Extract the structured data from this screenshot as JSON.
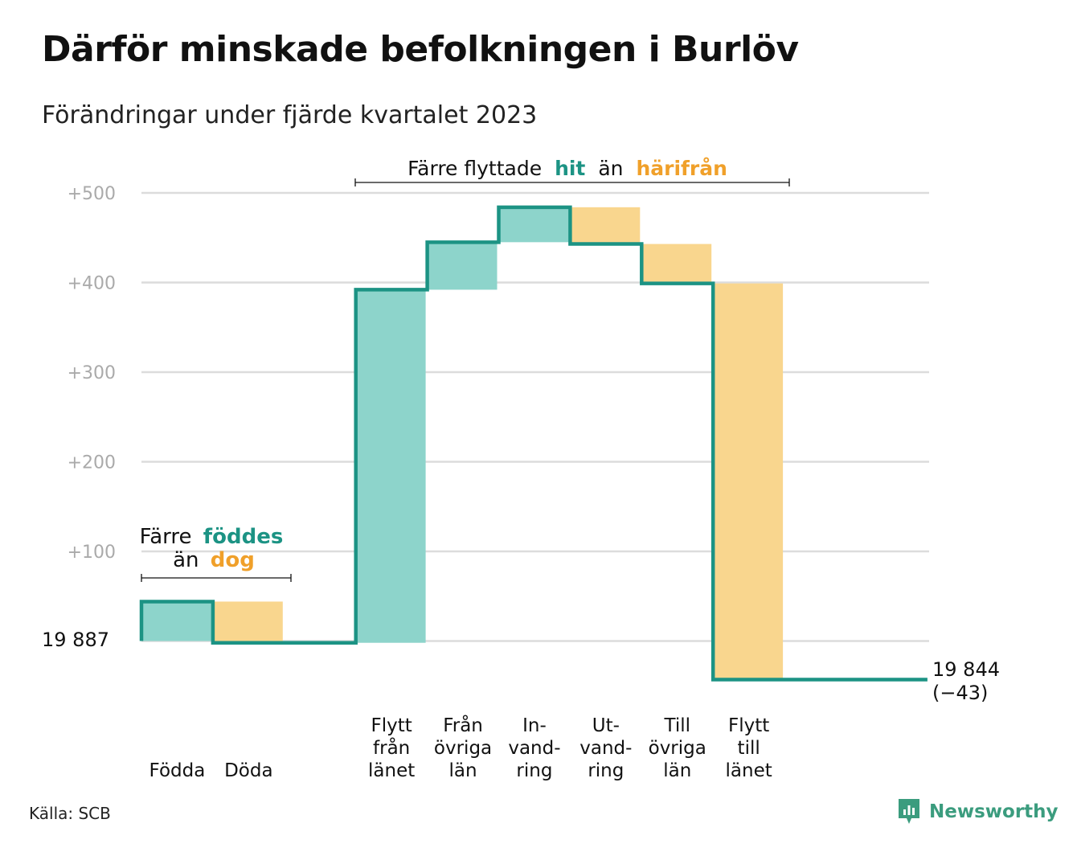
{
  "title": "Därför minskade befolkningen i Burlöv",
  "subtitle": "Förändringar under fjärde kvartalet 2023",
  "source": "Källa: SCB",
  "brand": "Newsworthy",
  "colors": {
    "increase": "#8dd4cb",
    "decrease": "#f9d68e",
    "line": "#1c9384",
    "grid": "#dcdcdc",
    "axis_text": "#aaaaaa",
    "accent_hit": "#1c9384",
    "accent_har": "#f0a02a"
  },
  "annotations": {
    "births": {
      "l1_pre": "Färre",
      "l1_hl": "föddes",
      "l2_pre": "än",
      "l2_hl": "dog"
    },
    "migration": {
      "pre": "Färre flyttade",
      "hl1": "hit",
      "mid": "än",
      "hl2": "härifrån"
    }
  },
  "chart_data": {
    "type": "waterfall",
    "start_label": "19  887",
    "end_label": "19 844",
    "end_change_label": "(−43)",
    "ylim": [
      -60,
      520
    ],
    "y_ticks": [
      {
        "value": 100,
        "label": "+100"
      },
      {
        "value": 200,
        "label": "+200"
      },
      {
        "value": 300,
        "label": "+300"
      },
      {
        "value": 400,
        "label": "+400"
      },
      {
        "value": 500,
        "label": "+500"
      }
    ],
    "grid": true,
    "categories": [
      {
        "label": [
          "Födda"
        ],
        "change": 44
      },
      {
        "label": [
          "Döda"
        ],
        "change": -46
      },
      {
        "label": [],
        "change": 0
      },
      {
        "label": [
          "Flytt",
          "från",
          "länet"
        ],
        "change": 394
      },
      {
        "label": [
          "Från",
          "övriga",
          "län"
        ],
        "change": 53
      },
      {
        "label": [
          "In-",
          "vand-",
          "ring"
        ],
        "change": 39
      },
      {
        "label": [
          "Ut-",
          "vand-",
          "ring"
        ],
        "change": -41
      },
      {
        "label": [
          "Till",
          "övriga",
          "län"
        ],
        "change": -44
      },
      {
        "label": [
          "Flytt",
          "till",
          "länet"
        ],
        "change": -442
      },
      {
        "label": [],
        "change": 0
      },
      {
        "label": [],
        "change": 0
      }
    ]
  }
}
